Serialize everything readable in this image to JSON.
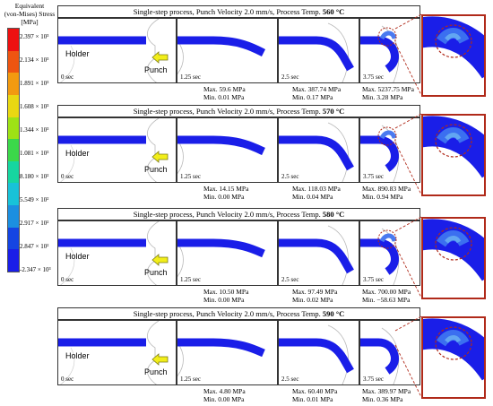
{
  "legend": {
    "title_lines": [
      "Equivalent",
      "(von-Mises) Stress",
      "[MPa]"
    ],
    "labels": [
      "2.397 × 10³",
      "2.134 × 10³",
      "1.891 × 10³",
      "1.608 × 10³",
      "1.344 × 10³",
      "1.081 × 10³",
      "8.180 × 10²",
      "5.549 × 10²",
      "2.917 × 10²",
      "2.847 × 10²",
      "-2.347 × 10³"
    ],
    "colors": [
      "#ee1111",
      "#ee5511",
      "#f29a10",
      "#e9d812",
      "#9ee215",
      "#3bd84a",
      "#16d6a0",
      "#18c2d8",
      "#1c8fe0",
      "#1545e2",
      "#1a1ee8"
    ]
  },
  "rows": [
    {
      "title_prefix": "Single-step process, Punch Velocity 2.0 mm/s, Process Temp.",
      "temp": "560 °C",
      "times": [
        "0 sec",
        "1.25 sec",
        "2.5 sec",
        "3.75 sec"
      ],
      "holder": "Holder",
      "punch": "Punch",
      "stats": [
        {
          "max": "Max. 59.6 MPa",
          "min": "Min. 0.01 MPa"
        },
        {
          "max": "Max. 387.74 MPa",
          "min": "Min. 0.17 MPa"
        },
        {
          "max": "Max. 5237.75 MPa",
          "min": "Min. 3.28 MPa"
        }
      ]
    },
    {
      "title_prefix": "Single-step process, Punch Velocity 2.0 mm/s, Process Temp.",
      "temp": "570 °C",
      "times": [
        "0 sec",
        "1.25 sec",
        "2.5 sec",
        "3.75 sec"
      ],
      "holder": "Holder",
      "punch": "Punch",
      "stats": [
        {
          "max": "Max. 14.15 MPa",
          "min": "Min. 0.00 MPa"
        },
        {
          "max": "Max. 118.03 MPa",
          "min": "Min. 0.04 MPa"
        },
        {
          "max": "Max. 890.83 MPa",
          "min": "Min. 0.94 MPa"
        }
      ]
    },
    {
      "title_prefix": "Single-step process, Punch Velocity 2.0 mm/s, Process Temp.",
      "temp": "580 °C",
      "times": [
        "0 sec",
        "1.25 sec",
        "2.5 sec",
        "3.75 sec"
      ],
      "holder": "Holder",
      "punch": "Punch",
      "stats": [
        {
          "max": "Max. 10.50 MPa",
          "min": "Min. 0.00 MPa"
        },
        {
          "max": "Max. 97.49 MPa",
          "min": "Min. 0.02 MPa"
        },
        {
          "max": "Max. 700.00 MPa",
          "min": "Min. −58.63 MPa"
        }
      ]
    },
    {
      "title_prefix": "Single-step process, Punch Velocity 2.0 mm/s, Process Temp.",
      "temp": "590 °C",
      "times": [
        "0 sec",
        "1.25 sec",
        "2.5 sec",
        "3.75 sec"
      ],
      "holder": "Holder",
      "punch": "Punch",
      "stats": [
        {
          "max": "Max. 4.80 MPa",
          "min": "Min. 0.00 MPa"
        },
        {
          "max": "Max. 60.40 MPa",
          "min": "Min. 0.01 MPa"
        },
        {
          "max": "Max. 389.97 MPa",
          "min": "Min. 0.36 MPa"
        }
      ]
    }
  ]
}
